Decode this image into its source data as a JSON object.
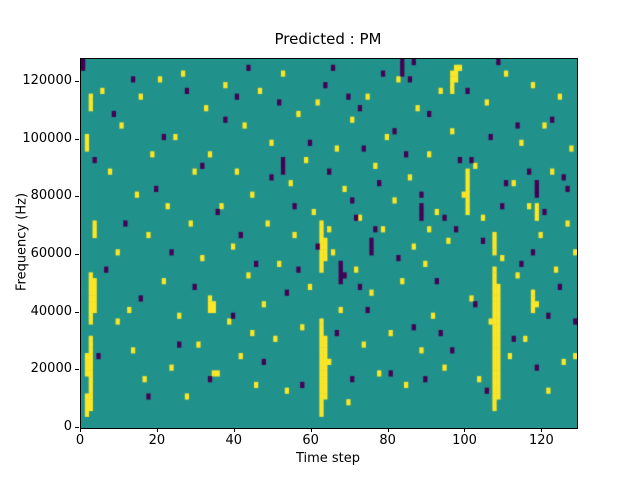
{
  "window": {
    "title": "Figure"
  },
  "chart_data": {
    "type": "heatmap",
    "title": "Predicted : PM",
    "xlabel": "Time step",
    "ylabel": "Frequency (Hz)",
    "xlim": [
      0,
      129
    ],
    "ylim": [
      0,
      128000
    ],
    "x_ticks": [
      0,
      20,
      40,
      60,
      80,
      100,
      120
    ],
    "y_ticks": [
      0,
      20000,
      40000,
      60000,
      80000,
      100000,
      120000
    ],
    "grid": false,
    "legend": "none",
    "bin_size": {
      "x": 1,
      "y_hz": 2000
    },
    "colors": {
      "background_mid": "#21918c",
      "high_yellow": "#fde725",
      "low_purple": "#440154"
    },
    "value_meaning": {
      "background_mid": 0.5,
      "high_yellow": 1,
      "low_purple": 0
    },
    "yellow_runs": [
      [
        1,
        2,
        5
      ],
      [
        1,
        9,
        12
      ],
      [
        2,
        3,
        15
      ],
      [
        2,
        18,
        26
      ],
      [
        3,
        20,
        25
      ],
      [
        1,
        48,
        50
      ],
      [
        2,
        55,
        57
      ],
      [
        3,
        33,
        35
      ],
      [
        62,
        2,
        18
      ],
      [
        63,
        5,
        15
      ],
      [
        62,
        27,
        35
      ],
      [
        63,
        29,
        32
      ],
      [
        107,
        3,
        27
      ],
      [
        108,
        5,
        24
      ],
      [
        107,
        30,
        33
      ],
      [
        100,
        37,
        44
      ],
      [
        96,
        58,
        61
      ],
      [
        97,
        60,
        62
      ],
      [
        33,
        20,
        22
      ],
      [
        34,
        20,
        21
      ],
      [
        117,
        20,
        23
      ],
      [
        118,
        36,
        38
      ]
    ],
    "purple_runs": [
      [
        67,
        25,
        28
      ],
      [
        75,
        30,
        32
      ],
      [
        88,
        36,
        38
      ],
      [
        118,
        40,
        42
      ],
      [
        52,
        44,
        46
      ],
      [
        83,
        61,
        63
      ],
      [
        0,
        62,
        63
      ]
    ],
    "yellow_cells": [
      [
        5,
        58
      ],
      [
        7,
        44
      ],
      [
        9,
        30
      ],
      [
        10,
        52
      ],
      [
        12,
        20
      ],
      [
        13,
        13
      ],
      [
        14,
        40
      ],
      [
        15,
        57
      ],
      [
        16,
        8
      ],
      [
        17,
        33
      ],
      [
        18,
        47
      ],
      [
        20,
        60
      ],
      [
        21,
        25
      ],
      [
        22,
        38
      ],
      [
        23,
        10
      ],
      [
        24,
        50
      ],
      [
        25,
        19
      ],
      [
        26,
        61
      ],
      [
        27,
        5
      ],
      [
        28,
        35
      ],
      [
        29,
        44
      ],
      [
        30,
        14
      ],
      [
        31,
        29
      ],
      [
        32,
        55
      ],
      [
        33,
        47
      ],
      [
        34,
        9
      ],
      [
        35,
        9
      ],
      [
        36,
        38
      ],
      [
        37,
        59
      ],
      [
        38,
        18
      ],
      [
        39,
        31
      ],
      [
        40,
        44
      ],
      [
        41,
        12
      ],
      [
        42,
        52
      ],
      [
        43,
        26
      ],
      [
        44,
        40
      ],
      [
        45,
        7
      ],
      [
        46,
        58
      ],
      [
        47,
        21
      ],
      [
        48,
        35
      ],
      [
        49,
        49
      ],
      [
        50,
        15
      ],
      [
        51,
        28
      ],
      [
        52,
        61
      ],
      [
        53,
        6
      ],
      [
        54,
        42
      ],
      [
        55,
        33
      ],
      [
        56,
        54
      ],
      [
        57,
        17
      ],
      [
        58,
        46
      ],
      [
        59,
        24
      ],
      [
        60,
        37
      ],
      [
        61,
        56
      ],
      [
        64,
        11
      ],
      [
        65,
        30
      ],
      [
        66,
        48
      ],
      [
        67,
        20
      ],
      [
        68,
        41
      ],
      [
        69,
        4
      ],
      [
        70,
        53
      ],
      [
        71,
        27
      ],
      [
        72,
        36
      ],
      [
        73,
        14
      ],
      [
        74,
        57
      ],
      [
        75,
        23
      ],
      [
        76,
        45
      ],
      [
        77,
        9
      ],
      [
        78,
        34
      ],
      [
        79,
        50
      ],
      [
        80,
        16
      ],
      [
        81,
        39
      ],
      [
        82,
        60
      ],
      [
        83,
        25
      ],
      [
        84,
        7
      ],
      [
        85,
        43
      ],
      [
        86,
        31
      ],
      [
        87,
        55
      ],
      [
        88,
        13
      ],
      [
        89,
        28
      ],
      [
        90,
        47
      ],
      [
        91,
        19
      ],
      [
        92,
        37
      ],
      [
        93,
        58
      ],
      [
        94,
        10
      ],
      [
        95,
        32
      ],
      [
        96,
        51
      ],
      [
        98,
        62
      ],
      [
        99,
        40
      ],
      [
        101,
        22
      ],
      [
        102,
        45
      ],
      [
        103,
        8
      ],
      [
        104,
        36
      ],
      [
        105,
        56
      ],
      [
        106,
        18
      ],
      [
        109,
        29
      ],
      [
        110,
        61
      ],
      [
        111,
        12
      ],
      [
        112,
        42
      ],
      [
        113,
        26
      ],
      [
        114,
        49
      ],
      [
        115,
        15
      ],
      [
        116,
        38
      ],
      [
        117,
        59
      ],
      [
        118,
        21
      ],
      [
        119,
        33
      ],
      [
        120,
        52
      ],
      [
        121,
        6
      ],
      [
        122,
        44
      ],
      [
        123,
        27
      ],
      [
        124,
        57
      ],
      [
        125,
        11
      ],
      [
        126,
        35
      ],
      [
        127,
        48
      ],
      [
        128,
        30
      ],
      [
        128,
        12
      ],
      [
        9,
        18
      ],
      [
        44,
        16
      ],
      [
        64,
        34
      ],
      [
        90,
        34
      ]
    ],
    "purple_cells": [
      [
        3,
        46
      ],
      [
        4,
        12
      ],
      [
        6,
        27
      ],
      [
        8,
        54
      ],
      [
        11,
        35
      ],
      [
        13,
        60
      ],
      [
        15,
        22
      ],
      [
        17,
        5
      ],
      [
        19,
        41
      ],
      [
        21,
        50
      ],
      [
        23,
        30
      ],
      [
        25,
        14
      ],
      [
        27,
        58
      ],
      [
        29,
        24
      ],
      [
        31,
        45
      ],
      [
        33,
        8
      ],
      [
        35,
        37
      ],
      [
        37,
        53
      ],
      [
        39,
        19
      ],
      [
        41,
        33
      ],
      [
        43,
        62
      ],
      [
        45,
        28
      ],
      [
        47,
        11
      ],
      [
        49,
        43
      ],
      [
        51,
        56
      ],
      [
        53,
        23
      ],
      [
        55,
        38
      ],
      [
        57,
        7
      ],
      [
        59,
        49
      ],
      [
        61,
        31
      ],
      [
        63,
        59
      ],
      [
        64,
        44
      ],
      [
        66,
        16
      ],
      [
        68,
        26
      ],
      [
        70,
        39
      ],
      [
        72,
        55
      ],
      [
        74,
        20
      ],
      [
        76,
        34
      ],
      [
        78,
        61
      ],
      [
        80,
        9
      ],
      [
        82,
        29
      ],
      [
        84,
        47
      ],
      [
        86,
        17
      ],
      [
        88,
        40
      ],
      [
        90,
        54
      ],
      [
        92,
        25
      ],
      [
        94,
        36
      ],
      [
        96,
        13
      ],
      [
        98,
        46
      ],
      [
        100,
        58
      ],
      [
        102,
        21
      ],
      [
        104,
        32
      ],
      [
        106,
        50
      ],
      [
        108,
        63
      ],
      [
        110,
        42
      ],
      [
        112,
        15
      ],
      [
        114,
        28
      ],
      [
        116,
        44
      ],
      [
        118,
        10
      ],
      [
        120,
        37
      ],
      [
        122,
        53
      ],
      [
        124,
        24
      ],
      [
        126,
        41
      ],
      [
        128,
        18
      ],
      [
        65,
        62
      ],
      [
        69,
        57
      ],
      [
        73,
        48
      ],
      [
        77,
        42
      ],
      [
        81,
        51
      ],
      [
        85,
        60
      ],
      [
        89,
        8
      ],
      [
        93,
        16
      ],
      [
        97,
        34
      ],
      [
        101,
        46
      ],
      [
        105,
        6
      ],
      [
        109,
        38
      ],
      [
        113,
        52
      ],
      [
        117,
        30
      ],
      [
        121,
        19
      ],
      [
        125,
        43
      ],
      [
        71,
        36
      ],
      [
        72,
        24
      ],
      [
        70,
        8
      ],
      [
        86,
        63
      ],
      [
        56,
        27
      ],
      [
        40,
        57
      ]
    ]
  }
}
